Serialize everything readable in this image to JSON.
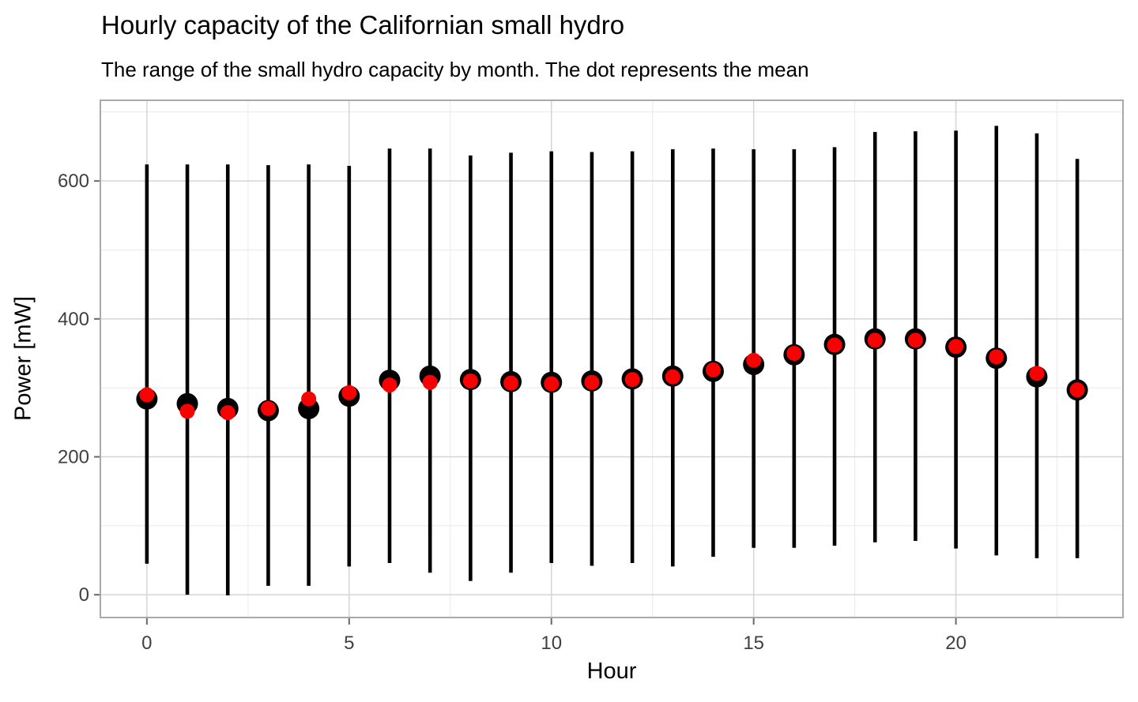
{
  "chart_data": {
    "type": "errorbar-dot",
    "title": "Hourly capacity of the Californian small hydro",
    "subtitle": "The range of the small hydro capacity by month. The dot represents the mean",
    "xlabel": "Hour",
    "ylabel": "Power [mW]",
    "xlim": [
      -1.15,
      24.13
    ],
    "ylim": [
      -33,
      717
    ],
    "x_ticks": [
      0,
      5,
      10,
      15,
      20
    ],
    "x_minor": [
      2.5,
      7.5,
      12.5,
      17.5,
      22.5
    ],
    "y_ticks": [
      0,
      200,
      400,
      600
    ],
    "y_minor": [
      100,
      300,
      500,
      700
    ],
    "grid": true,
    "legend": "none",
    "colors": {
      "range_bar": "#000000",
      "mean_dot_black": "#000000",
      "mean_dot_red": "#FB0000",
      "grid_major": "#D5D5D5",
      "grid_minor": "#ECECEC",
      "panel_border": "#A9A9A9",
      "tick_mark": "#686868",
      "tick_label": "#404040",
      "background": "#FFFFFF"
    },
    "points": [
      {
        "h": 0,
        "min": 45,
        "max": 624,
        "mean_black": 284,
        "mean_red": 290
      },
      {
        "h": 1,
        "min": 0,
        "max": 624,
        "mean_black": 277,
        "mean_red": 266
      },
      {
        "h": 2,
        "min": -1,
        "max": 624,
        "mean_black": 270,
        "mean_red": 264
      },
      {
        "h": 3,
        "min": 13,
        "max": 623,
        "mean_black": 267,
        "mean_red": 270
      },
      {
        "h": 4,
        "min": 13,
        "max": 624,
        "mean_black": 270,
        "mean_red": 284
      },
      {
        "h": 5,
        "min": 41,
        "max": 622,
        "mean_black": 288,
        "mean_red": 293
      },
      {
        "h": 6,
        "min": 46,
        "max": 647,
        "mean_black": 311,
        "mean_red": 304
      },
      {
        "h": 7,
        "min": 32,
        "max": 647,
        "mean_black": 317,
        "mean_red": 308
      },
      {
        "h": 8,
        "min": 20,
        "max": 637,
        "mean_black": 312,
        "mean_red": 310
      },
      {
        "h": 9,
        "min": 32,
        "max": 641,
        "mean_black": 309,
        "mean_red": 307
      },
      {
        "h": 10,
        "min": 46,
        "max": 643,
        "mean_black": 308,
        "mean_red": 306
      },
      {
        "h": 11,
        "min": 42,
        "max": 642,
        "mean_black": 310,
        "mean_red": 308
      },
      {
        "h": 12,
        "min": 46,
        "max": 643,
        "mean_black": 313,
        "mean_red": 312
      },
      {
        "h": 13,
        "min": 41,
        "max": 646,
        "mean_black": 317,
        "mean_red": 316
      },
      {
        "h": 14,
        "min": 55,
        "max": 647,
        "mean_black": 324,
        "mean_red": 326
      },
      {
        "h": 15,
        "min": 68,
        "max": 646,
        "mean_black": 334,
        "mean_red": 340
      },
      {
        "h": 16,
        "min": 68,
        "max": 646,
        "mean_black": 348,
        "mean_red": 350
      },
      {
        "h": 17,
        "min": 71,
        "max": 649,
        "mean_black": 363,
        "mean_red": 362
      },
      {
        "h": 18,
        "min": 76,
        "max": 671,
        "mean_black": 371,
        "mean_red": 369
      },
      {
        "h": 19,
        "min": 78,
        "max": 672,
        "mean_black": 371,
        "mean_red": 369
      },
      {
        "h": 20,
        "min": 67,
        "max": 673,
        "mean_black": 359,
        "mean_red": 360
      },
      {
        "h": 21,
        "min": 57,
        "max": 680,
        "mean_black": 343,
        "mean_red": 345
      },
      {
        "h": 22,
        "min": 53,
        "max": 669,
        "mean_black": 316,
        "mean_red": 321
      },
      {
        "h": 23,
        "min": 53,
        "max": 632,
        "mean_black": 297,
        "mean_red": 297
      }
    ]
  }
}
